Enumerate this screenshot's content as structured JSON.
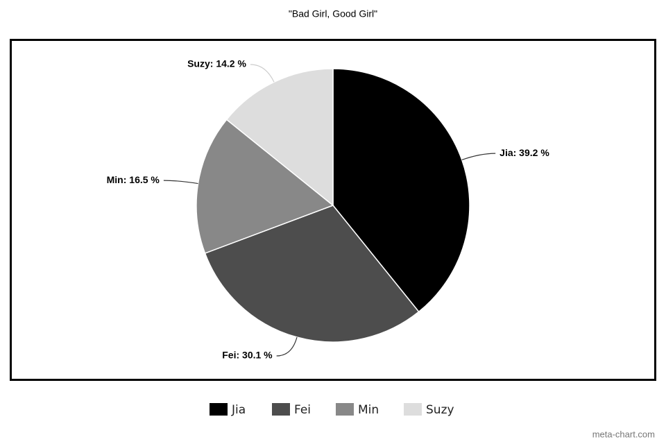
{
  "chart_data": {
    "type": "pie",
    "title": "\"Bad Girl, Good Girl\"",
    "categories": [
      "Jia",
      "Fei",
      "Min",
      "Suzy"
    ],
    "values": [
      39.2,
      30.1,
      16.5,
      14.2
    ],
    "value_labels": [
      "Jia: 39.2 %",
      "Fei: 30.1 %",
      "Min: 16.5 %",
      "Suzy: 14.2 %"
    ],
    "colors": [
      "#000000",
      "#4d4d4d",
      "#888888",
      "#dddddd"
    ],
    "legend": "bottom",
    "credit": "meta-chart.com"
  }
}
